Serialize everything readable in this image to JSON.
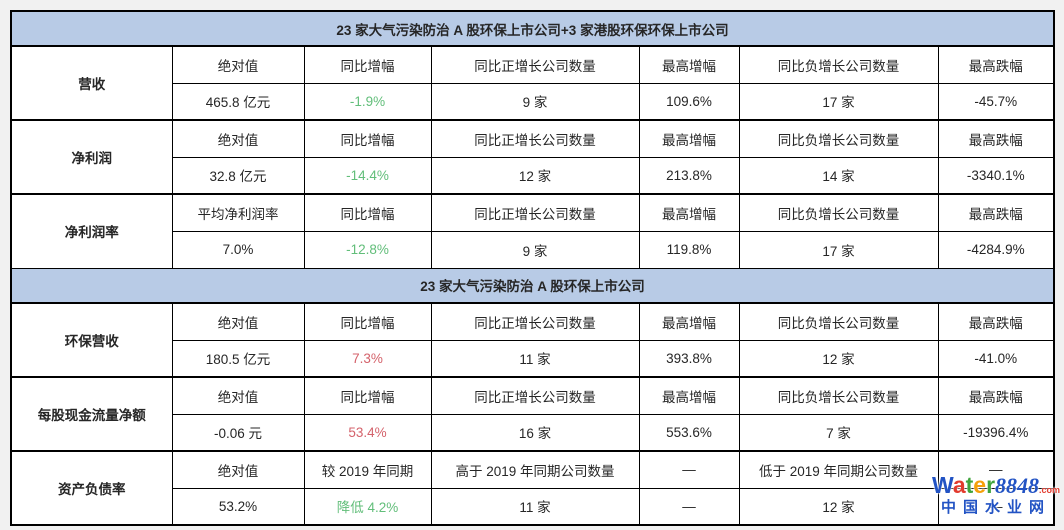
{
  "colors": {
    "header_bg": "#b8cbe6",
    "border": "#000000",
    "text": "#262626",
    "red": "#d4626b",
    "green": "#62be7a",
    "watermark_blue": "#2253c4",
    "watermark_red": "#e23b2e"
  },
  "table": {
    "sections": [
      {
        "type": "banner",
        "title": "23 家大气污染防治 A 股环保上市公司+3 家港股环保环保上市公司"
      },
      {
        "type": "group",
        "label": "营收",
        "headers": [
          "绝对值",
          "同比增幅",
          "同比正增长公司数量",
          "最高增幅",
          "同比负增长公司数量",
          "最高跌幅"
        ],
        "values": [
          {
            "t": "465.8 亿元"
          },
          {
            "t": "-1.9%",
            "c": "green"
          },
          {
            "t": "9 家"
          },
          {
            "t": "109.6%"
          },
          {
            "t": "17 家"
          },
          {
            "t": "-45.7%"
          }
        ]
      },
      {
        "type": "group",
        "label": "净利润",
        "headers": [
          "绝对值",
          "同比增幅",
          "同比正增长公司数量",
          "最高增幅",
          "同比负增长公司数量",
          "最高跌幅"
        ],
        "values": [
          {
            "t": "32.8 亿元"
          },
          {
            "t": "-14.4%",
            "c": "green"
          },
          {
            "t": "12 家"
          },
          {
            "t": "213.8%"
          },
          {
            "t": "14 家"
          },
          {
            "t": "-3340.1%"
          }
        ]
      },
      {
        "type": "group",
        "label": "净利润率",
        "headers": [
          "平均净利润率",
          "同比增幅",
          "同比正增长公司数量",
          "最高增幅",
          "同比负增长公司数量",
          "最高跌幅"
        ],
        "values": [
          {
            "t": "7.0%"
          },
          {
            "t": "-12.8%",
            "c": "green"
          },
          {
            "t": "9 家"
          },
          {
            "t": "119.8%"
          },
          {
            "t": "17 家"
          },
          {
            "t": "-4284.9%"
          }
        ]
      },
      {
        "type": "banner",
        "title": "23 家大气污染防治 A 股环保上市公司"
      },
      {
        "type": "group",
        "label": "环保营收",
        "headers": [
          "绝对值",
          "同比增幅",
          "同比正增长公司数量",
          "最高增幅",
          "同比负增长公司数量",
          "最高跌幅"
        ],
        "values": [
          {
            "t": "180.5 亿元"
          },
          {
            "t": "7.3%",
            "c": "red"
          },
          {
            "t": "11 家"
          },
          {
            "t": "393.8%"
          },
          {
            "t": "12 家"
          },
          {
            "t": "-41.0%"
          }
        ]
      },
      {
        "type": "group",
        "label": "每股现金流量净额",
        "headers": [
          "绝对值",
          "同比增幅",
          "同比正增长公司数量",
          "最高增幅",
          "同比负增长公司数量",
          "最高跌幅"
        ],
        "values": [
          {
            "t": "-0.06 元"
          },
          {
            "t": "53.4%",
            "c": "red"
          },
          {
            "t": "16 家"
          },
          {
            "t": "553.6%"
          },
          {
            "t": "7 家"
          },
          {
            "t": "-19396.4%"
          }
        ]
      },
      {
        "type": "group",
        "label": "资产负债率",
        "headers": [
          "绝对值",
          "较 2019 年同期",
          "高于 2019 年同期公司数量",
          "—",
          "低于 2019 年同期公司数量",
          "—"
        ],
        "values": [
          {
            "t": "53.2%"
          },
          {
            "t": "降低 4.2%",
            "c": "green"
          },
          {
            "t": "11 家"
          },
          {
            "t": "—"
          },
          {
            "t": "12 家"
          },
          {
            "t": "—"
          }
        ]
      }
    ]
  },
  "watermark": {
    "brand_letters": [
      {
        "ch": "W",
        "color": "#2253c4"
      },
      {
        "ch": "a",
        "color": "#e23b2e"
      },
      {
        "ch": "t",
        "color": "#3fa43c"
      },
      {
        "ch": "e",
        "color": "#f5a00a"
      },
      {
        "ch": "r",
        "color": "#3fa43c"
      },
      {
        "ch": "8848",
        "color": "#2253c4",
        "num": true
      }
    ],
    "dot_com": ".com",
    "site_name": "中国水业网"
  }
}
